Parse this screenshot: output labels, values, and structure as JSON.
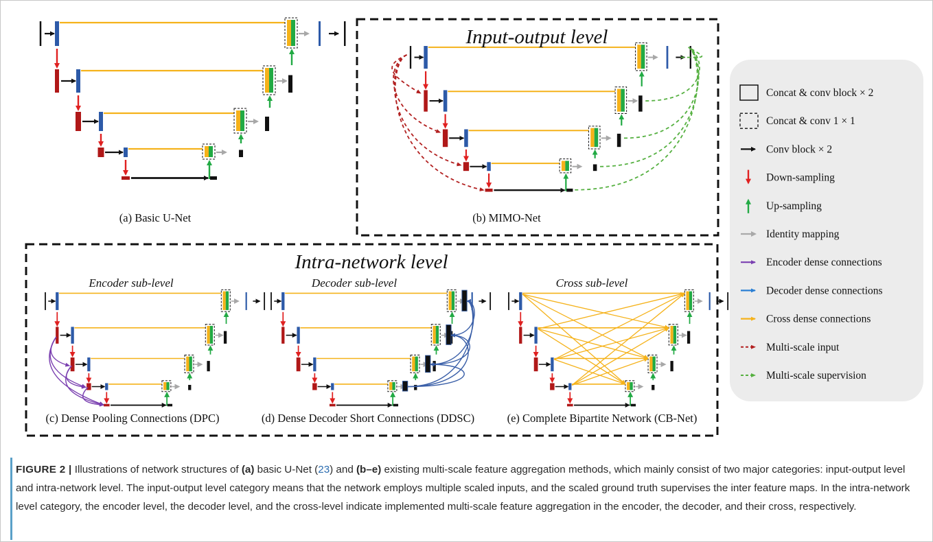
{
  "panels": {
    "a": {
      "caption": "(a) Basic U-Net"
    },
    "b": {
      "title": "Input-output level",
      "caption": "(b) MIMO-Net"
    },
    "intra": {
      "title": "Intra-network level"
    },
    "c": {
      "sublevel": "Encoder sub-level",
      "caption": "(c) Dense Pooling Connections (DPC)"
    },
    "d": {
      "sublevel": "Decoder sub-level",
      "caption": "(d) Dense Decoder Short Connections (DDSC)"
    },
    "e": {
      "sublevel": "Cross sub-level",
      "caption": "(e) Complete Bipartite Network (CB-Net)"
    }
  },
  "legend": {
    "items": [
      {
        "label": "Concat & conv block × 2",
        "symbol": "solid-box"
      },
      {
        "label": "Concat & conv 1 × 1",
        "symbol": "dashed-box"
      },
      {
        "label": "Conv block × 2",
        "symbol": "arrow",
        "color": "#111111"
      },
      {
        "label": "Down-sampling",
        "symbol": "arrow-down",
        "color": "#e02020"
      },
      {
        "label": "Up-sampling",
        "symbol": "arrow-up",
        "color": "#22aa44"
      },
      {
        "label": "Identity mapping",
        "symbol": "arrow",
        "color": "#a8a8a8"
      },
      {
        "label": "Encoder dense  connections",
        "symbol": "arrow",
        "color": "#7a3fb0"
      },
      {
        "label": "Decoder dense connections",
        "symbol": "arrow",
        "color": "#2a7fd4"
      },
      {
        "label": "Cross dense connections",
        "symbol": "arrow",
        "color": "#f5b21a"
      },
      {
        "label": "Multi-scale input",
        "symbol": "dashed-arrow",
        "color": "#b22020"
      },
      {
        "label": "Multi-scale supervision",
        "symbol": "dashed-arrow",
        "color": "#55b040"
      }
    ]
  },
  "caption": {
    "label": "FIGURE 2 |",
    "t1": " Illustrations of network structures of ",
    "b1": "(a)",
    "t2": " basic U-Net (",
    "ref": "23",
    "t3": ") and ",
    "b2": "(b–e)",
    "t4": " existing multi-scale feature aggregation methods, which mainly consist of two major categories: input-output level and intra-network level. The input-output level category means that the network employs multiple scaled inputs, and the scaled ground truth supervises the inter feature maps. In the intra-network level category, the encoder level, the decoder level, and the cross-level indicate implemented multi-scale feature aggregation in the encoder, the decoder, and their cross, respectively."
  },
  "colors": {
    "black": "#111111",
    "red": "#e02020",
    "darkred": "#b01818",
    "blue": "#2d5aa8",
    "yellow": "#f5b21a",
    "green": "#22aa44",
    "gray": "#a8a8a8",
    "purple": "#7a3fb0",
    "decoderblue": "#3a5fa8",
    "msin": "#b22020",
    "msout": "#55b040",
    "legendbg": "#ececec"
  }
}
